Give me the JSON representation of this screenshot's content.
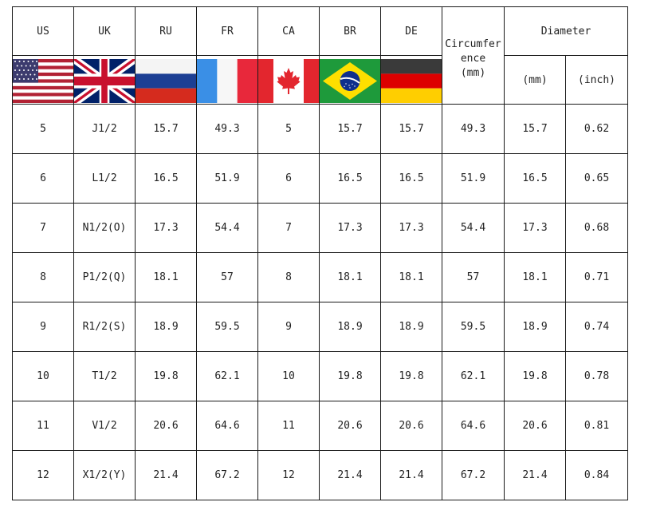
{
  "headers": {
    "us": "US",
    "uk": "UK",
    "ru": "RU",
    "fr": "FR",
    "ca": "CA",
    "br": "BR",
    "de": "DE",
    "circumference_line1": "Circumfer",
    "circumference_line2": "ence",
    "circumference_unit": "(mm)",
    "diameter": "Diameter",
    "diameter_mm": "(mm)",
    "diameter_inch": "(inch)"
  },
  "flags": [
    "us-flag",
    "uk-flag",
    "ru-flag",
    "fr-flag",
    "ca-flag",
    "br-flag",
    "de-flag"
  ],
  "rows": [
    [
      "5",
      "J1/2",
      "15.7",
      "49.3",
      "5",
      "15.7",
      "15.7",
      "49.3",
      "15.7",
      "0.62"
    ],
    [
      "6",
      "L1/2",
      "16.5",
      "51.9",
      "6",
      "16.5",
      "16.5",
      "51.9",
      "16.5",
      "0.65"
    ],
    [
      "7",
      "N1/2(O)",
      "17.3",
      "54.4",
      "7",
      "17.3",
      "17.3",
      "54.4",
      "17.3",
      "0.68"
    ],
    [
      "8",
      "P1/2(Q)",
      "18.1",
      "57",
      "8",
      "18.1",
      "18.1",
      "57",
      "18.1",
      "0.71"
    ],
    [
      "9",
      "R1/2(S)",
      "18.9",
      "59.5",
      "9",
      "18.9",
      "18.9",
      "59.5",
      "18.9",
      "0.74"
    ],
    [
      "10",
      "T1/2",
      "19.8",
      "62.1",
      "10",
      "19.8",
      "19.8",
      "62.1",
      "19.8",
      "0.78"
    ],
    [
      "11",
      "V1/2",
      "20.6",
      "64.6",
      "11",
      "20.6",
      "20.6",
      "64.6",
      "20.6",
      "0.81"
    ],
    [
      "12",
      "X1/2(Y)",
      "21.4",
      "67.2",
      "12",
      "21.4",
      "21.4",
      "67.2",
      "21.4",
      "0.84"
    ]
  ]
}
